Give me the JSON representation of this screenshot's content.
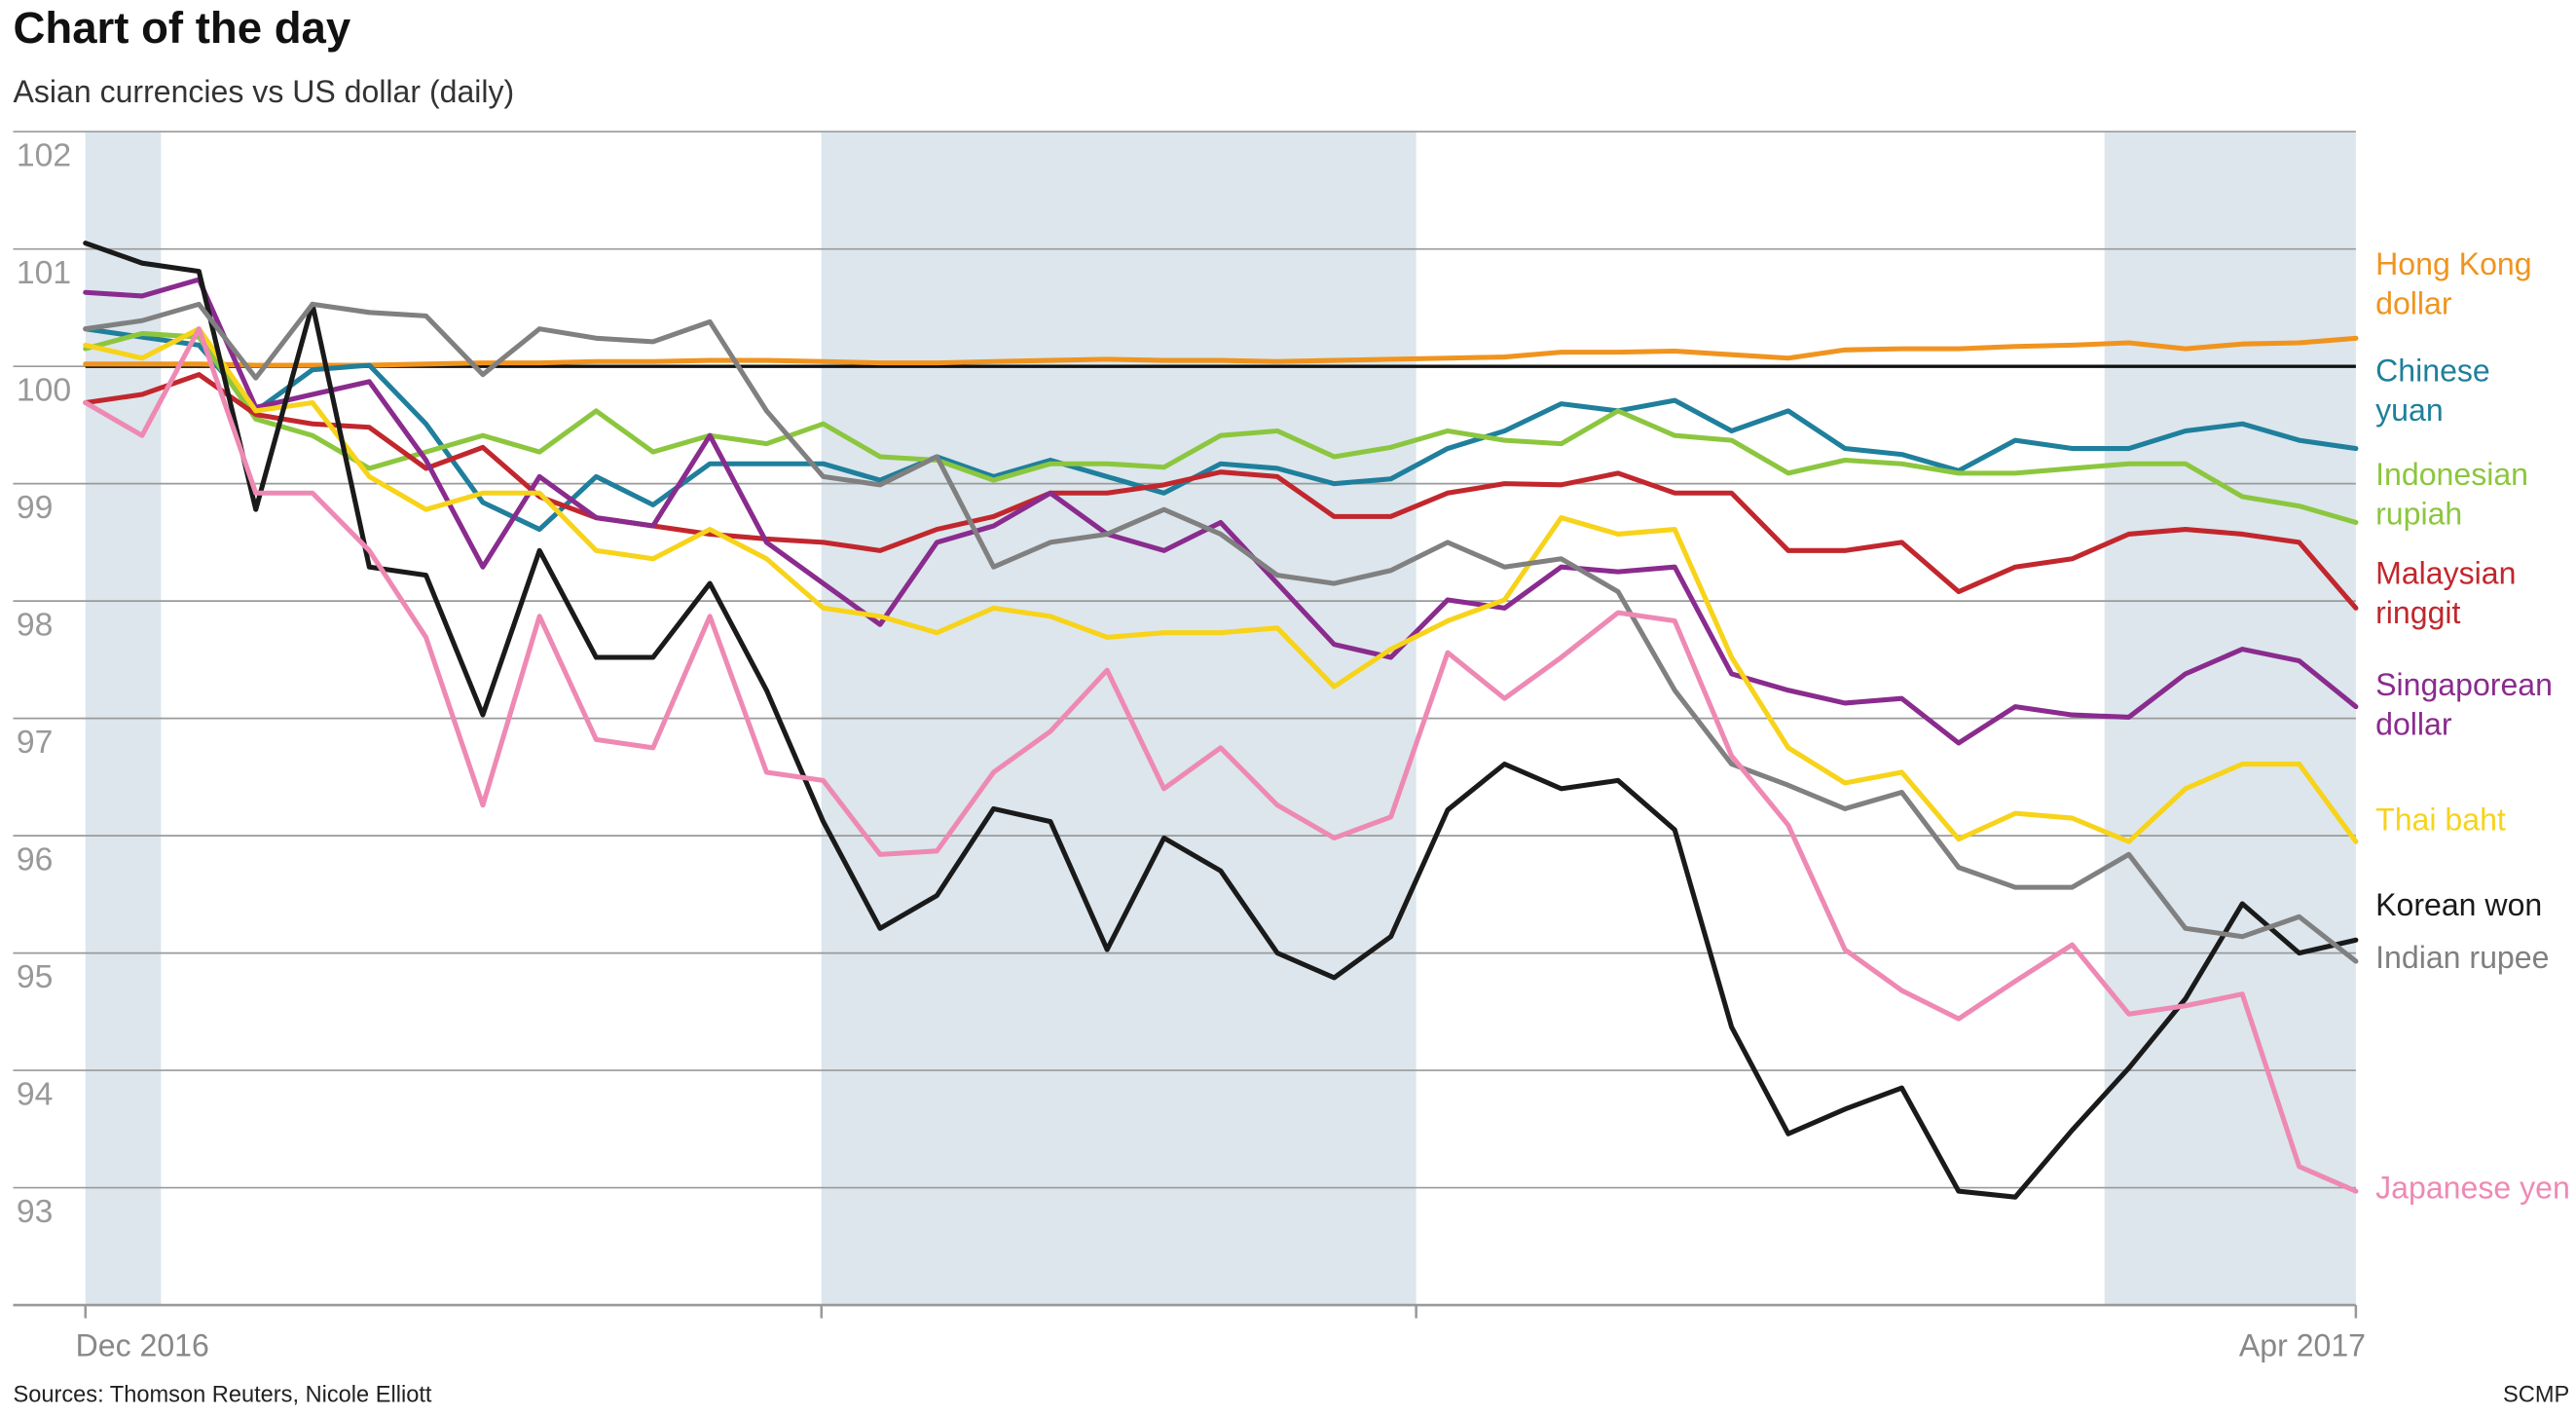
{
  "chart_data": {
    "type": "line",
    "title": "Chart of the day",
    "subtitle": "Asian currencies vs US dollar (daily)",
    "source": "Sources: Thomson Reuters, Nicole Elliott",
    "credit": "SCMP",
    "categories": [
      "Dec 2016",
      null,
      null,
      null,
      null,
      null,
      null,
      null,
      null,
      null,
      null,
      null,
      null,
      null,
      null,
      null,
      null,
      null,
      null,
      null,
      null,
      null,
      null,
      null,
      null,
      null,
      null,
      null,
      null,
      null,
      null,
      null,
      null,
      null,
      null,
      null,
      null,
      null,
      null,
      null,
      "Apr 2017"
    ],
    "ylim": [
      92,
      102
    ],
    "yticks": [
      93,
      94,
      95,
      96,
      97,
      98,
      99,
      100,
      101,
      102
    ],
    "baseline": 100,
    "grid": true,
    "legend": "right",
    "series": [
      {
        "name": "Hong Kong dollar",
        "color": "#f0941f",
        "values": [
          100.02,
          100.02,
          100.02,
          100.01,
          100.01,
          100.01,
          100.02,
          100.03,
          100.03,
          100.04,
          100.04,
          100.05,
          100.05,
          100.04,
          100.03,
          100.03,
          100.04,
          100.05,
          100.06,
          100.05,
          100.05,
          100.04,
          100.05,
          100.06,
          100.07,
          100.08,
          100.12,
          100.12,
          100.13,
          100.1,
          100.07,
          100.14,
          100.15,
          100.15,
          100.17,
          100.18,
          100.2,
          100.15,
          100.19,
          100.2,
          100.24
        ]
      },
      {
        "name": "Chinese yuan",
        "color": "#1f7f9c",
        "values": [
          100.32,
          100.25,
          100.18,
          99.62,
          99.97,
          100.01,
          99.51,
          98.84,
          98.61,
          99.06,
          98.82,
          99.17,
          99.17,
          99.17,
          99.03,
          99.23,
          99.06,
          99.2,
          99.06,
          98.92,
          99.17,
          99.13,
          99.0,
          99.04,
          99.3,
          99.45,
          99.68,
          99.62,
          99.71,
          99.45,
          99.62,
          99.3,
          99.25,
          99.11,
          99.37,
          99.3,
          99.3,
          99.45,
          99.51,
          99.37,
          99.3
        ]
      },
      {
        "name": "Indonesian rupiah",
        "color": "#8cc63f",
        "values": [
          100.15,
          100.28,
          100.25,
          99.55,
          99.41,
          99.13,
          99.27,
          99.41,
          99.27,
          99.62,
          99.27,
          99.41,
          99.34,
          99.51,
          99.23,
          99.2,
          99.03,
          99.17,
          99.17,
          99.14,
          99.41,
          99.45,
          99.23,
          99.31,
          99.45,
          99.37,
          99.34,
          99.62,
          99.41,
          99.37,
          99.09,
          99.2,
          99.17,
          99.09,
          99.09,
          99.13,
          99.17,
          99.17,
          98.89,
          98.81,
          98.67
        ]
      },
      {
        "name": "Malaysian ringgit",
        "color": "#c1272d",
        "values": [
          99.69,
          99.76,
          99.93,
          99.59,
          99.51,
          99.48,
          99.13,
          99.31,
          98.89,
          98.71,
          98.64,
          98.57,
          98.53,
          98.5,
          98.43,
          98.61,
          98.72,
          98.92,
          98.92,
          98.99,
          99.1,
          99.06,
          98.72,
          98.72,
          98.92,
          99.0,
          98.99,
          99.09,
          98.92,
          98.92,
          98.43,
          98.43,
          98.5,
          98.08,
          98.29,
          98.36,
          98.57,
          98.61,
          98.57,
          98.5,
          97.94
        ]
      },
      {
        "name": "Singaporean dollar",
        "color": "#8a2b8e",
        "values": [
          100.63,
          100.6,
          100.74,
          99.65,
          99.76,
          99.87,
          99.2,
          98.29,
          99.06,
          98.71,
          98.64,
          99.41,
          98.5,
          98.15,
          97.8,
          98.5,
          98.64,
          98.92,
          98.57,
          98.43,
          98.67,
          98.15,
          97.63,
          97.52,
          98.01,
          97.94,
          98.29,
          98.25,
          98.29,
          97.38,
          97.24,
          97.13,
          97.17,
          96.79,
          97.1,
          97.03,
          97.01,
          97.38,
          97.59,
          97.49,
          97.1
        ]
      },
      {
        "name": "Thai baht",
        "color": "#f7d31a",
        "values": [
          100.18,
          100.07,
          100.32,
          99.62,
          99.69,
          99.06,
          98.78,
          98.92,
          98.92,
          98.43,
          98.36,
          98.61,
          98.36,
          97.94,
          97.87,
          97.73,
          97.94,
          97.87,
          97.69,
          97.73,
          97.73,
          97.77,
          97.27,
          97.59,
          97.83,
          98.01,
          98.71,
          98.57,
          98.61,
          97.52,
          96.75,
          96.45,
          96.54,
          95.97,
          96.19,
          96.15,
          95.95,
          96.4,
          96.61,
          96.61,
          95.95
        ]
      },
      {
        "name": "Korean won",
        "color": "#1a1a1a",
        "values": [
          101.05,
          100.88,
          100.81,
          98.78,
          100.53,
          98.29,
          98.22,
          97.03,
          98.43,
          97.52,
          97.52,
          98.15,
          97.24,
          96.12,
          95.21,
          95.49,
          96.23,
          96.12,
          95.03,
          95.98,
          95.7,
          95.0,
          94.79,
          95.14,
          96.22,
          96.61,
          96.4,
          96.47,
          96.05,
          94.37,
          93.46,
          93.67,
          93.85,
          92.97,
          92.92,
          93.49,
          94.02,
          94.61,
          95.42,
          95.0,
          95.11
        ]
      },
      {
        "name": "Indian rupee",
        "color": "#808080",
        "values": [
          100.32,
          100.39,
          100.53,
          99.9,
          100.53,
          100.46,
          100.43,
          99.93,
          100.32,
          100.24,
          100.21,
          100.38,
          99.62,
          99.06,
          98.99,
          99.23,
          98.29,
          98.5,
          98.57,
          98.78,
          98.57,
          98.22,
          98.15,
          98.26,
          98.5,
          98.29,
          98.36,
          98.08,
          97.24,
          96.61,
          96.43,
          96.23,
          96.37,
          95.73,
          95.56,
          95.56,
          95.84,
          95.21,
          95.14,
          95.31,
          94.93
        ]
      },
      {
        "name": "Japanese yen",
        "color": "#ee89b4",
        "values": [
          99.69,
          99.41,
          100.32,
          98.92,
          98.92,
          98.43,
          97.69,
          96.26,
          97.87,
          96.82,
          96.75,
          97.87,
          96.54,
          96.47,
          95.84,
          95.87,
          96.54,
          96.89,
          97.41,
          96.4,
          96.75,
          96.26,
          95.98,
          96.16,
          97.56,
          97.17,
          97.52,
          97.9,
          97.83,
          96.68,
          96.09,
          95.03,
          94.68,
          94.44,
          94.76,
          95.07,
          94.48,
          94.55,
          94.65,
          93.18,
          92.97
        ]
      }
    ]
  }
}
